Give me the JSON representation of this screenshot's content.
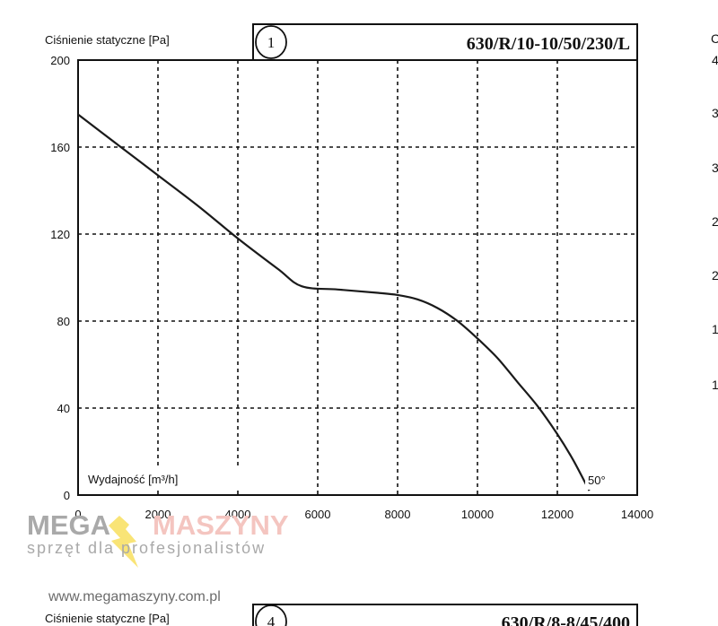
{
  "chart_data": [
    {
      "type": "line",
      "number": "1",
      "title": "630/R/10-10/50/230/L",
      "ylabel": "Ciśnienie statyczne [Pa]",
      "xlabel": "Wydajność [m³/h]",
      "xlim": [
        0,
        14000
      ],
      "ylim": [
        0,
        200
      ],
      "x_ticks": [
        "0",
        "2000",
        "4000",
        "6000",
        "8000",
        "10000",
        "12000",
        "14000"
      ],
      "y_ticks": [
        "0",
        "40",
        "80",
        "120",
        "160",
        "200"
      ],
      "grid": true,
      "grid_style": "dashed",
      "series": [
        {
          "label": "50°",
          "x": [
            0,
            1000,
            2000,
            3000,
            4000,
            5000,
            5600,
            6500,
            7500,
            8000,
            8500,
            9000,
            9500,
            10000,
            10500,
            11000,
            11500,
            12000,
            12400,
            12800
          ],
          "y": [
            175,
            161,
            147,
            133,
            118,
            104,
            96,
            94.5,
            93,
            92,
            90,
            86,
            80,
            72,
            63,
            52,
            41,
            28,
            16,
            2
          ]
        }
      ]
    },
    {
      "type": "line",
      "number": "4",
      "title": "630/R/8-8/45/400",
      "ylabel": "Ciśnienie statyczne [Pa]"
    }
  ],
  "right_edge_fragments": [
    "C",
    "4",
    "3",
    "3",
    "2",
    "2",
    "1",
    "1"
  ],
  "watermark": {
    "brand_left": "MEGA",
    "brand_right": "MASZYNY",
    "tagline": "sprzęt dla profesjonalistów",
    "url": "www.megamaszyny.com.pl",
    "colors": {
      "grey": "#a9a9a9",
      "red": "#e0463a",
      "yellow": "#f5d21a"
    }
  }
}
